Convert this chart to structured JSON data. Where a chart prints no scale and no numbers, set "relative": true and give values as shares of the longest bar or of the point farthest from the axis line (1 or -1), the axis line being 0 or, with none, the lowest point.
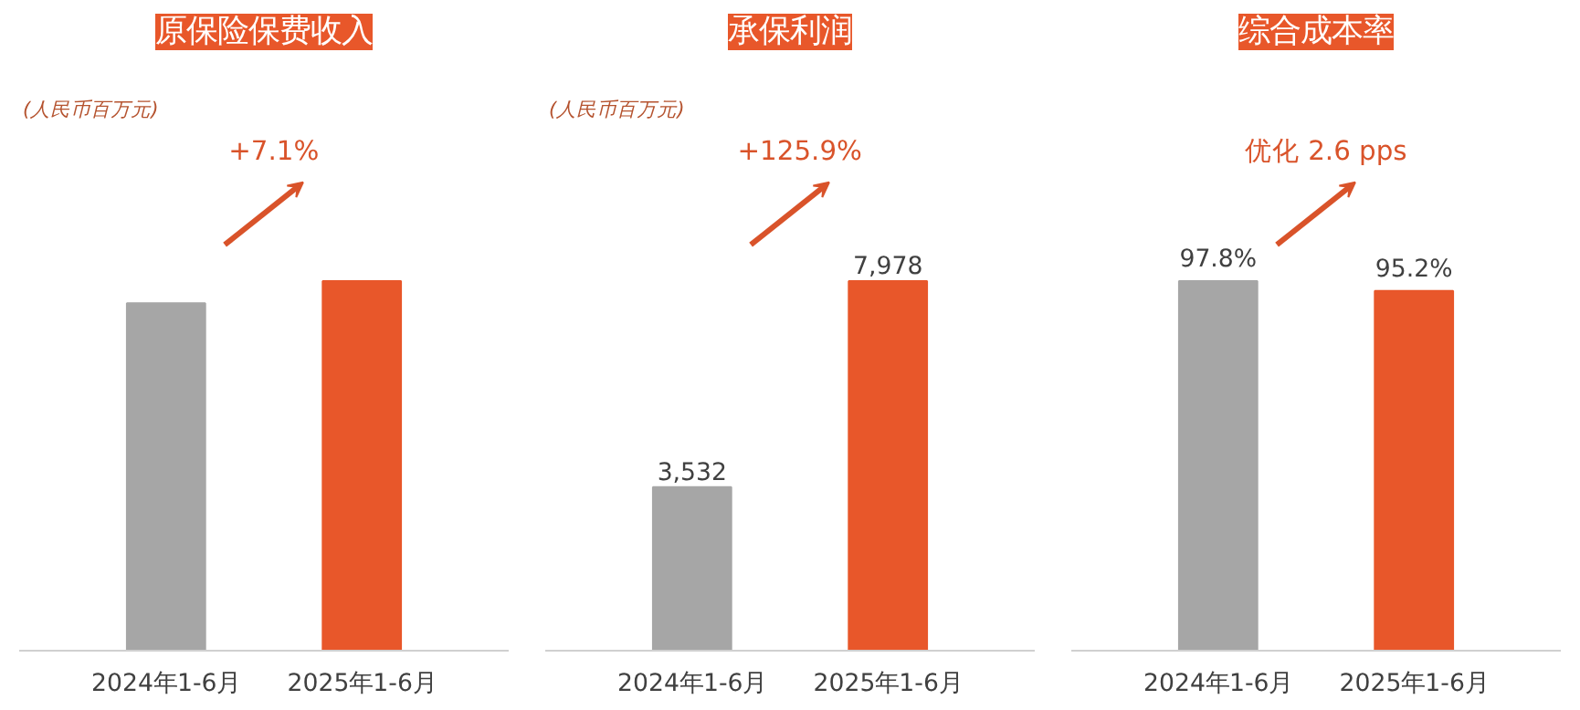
{
  "chart_data": [
    {
      "type": "bar",
      "title": "原保险保费收入",
      "subtitle": "(人民币百万元)",
      "categories": [
        "2024年1-6月",
        "2025年1-6月"
      ],
      "values": [
        0.94,
        1
      ],
      "colors": [
        "#a6a6a6",
        "#e8572a"
      ],
      "relative": true,
      "annotations": [
        "+7.1%"
      ]
    },
    {
      "type": "bar",
      "title": "承保利润",
      "subtitle": "(人民币百万元)",
      "categories": [
        "2024年1-6月",
        "2025年1-6月"
      ],
      "values": [
        3532,
        7978
      ],
      "colors": [
        "#a6a6a6",
        "#e8572a"
      ],
      "value_labels": [
        "3,532",
        "7,978"
      ],
      "annotations": [
        "+125.9%"
      ]
    },
    {
      "type": "bar",
      "title": "综合成本率",
      "categories": [
        "2024年1-6月",
        "2025年1-6月"
      ],
      "values": [
        97.8,
        95.2
      ],
      "colors": [
        "#a6a6a6",
        "#e8572a"
      ],
      "value_labels": [
        "97.8%",
        "95.2%"
      ],
      "annotations": [
        "优化 2.6 pps"
      ]
    }
  ]
}
